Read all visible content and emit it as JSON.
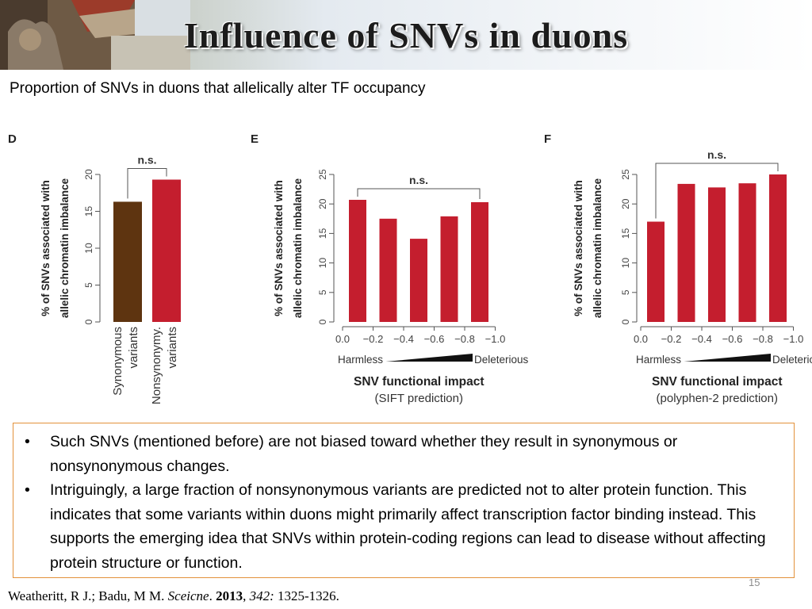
{
  "slide": {
    "title": "Influence of SNVs in duons",
    "subtitle": "Proportion of SNVs in duons that allelically alter TF occupancy",
    "page_number": "15"
  },
  "colors": {
    "synonymous_bar": "#5e3410",
    "bar_red": "#c41e2e",
    "box_border": "#e2913b"
  },
  "chart_data": [
    {
      "type": "bar",
      "panel_label": "D",
      "ylabel_lines": [
        "% of SNVs associated with",
        "allelic chromatin imbalance"
      ],
      "ylim": [
        0,
        20
      ],
      "yticks": [
        "0",
        "5",
        "10",
        "15",
        "20"
      ],
      "categories": [
        "Synonymous variants",
        "Nonsynonymy. variants"
      ],
      "category_lines": [
        [
          "Synonymous",
          "variants"
        ],
        [
          "Nonsynonymy.",
          "variants"
        ]
      ],
      "values": [
        16.3,
        19.3
      ],
      "bar_colors": [
        "#5e3410",
        "#c41e2e"
      ],
      "significance": "n.s."
    },
    {
      "type": "bar",
      "panel_label": "E",
      "ylabel_lines": [
        "% of SNVs associated with",
        "allelic chromatin imbalance"
      ],
      "ylim": [
        0,
        25
      ],
      "yticks": [
        "0",
        "5",
        "10",
        "15",
        "20",
        "25"
      ],
      "categories": [
        "0.0 − 0.2",
        "− 0.4",
        "− 0.6",
        "− 0.8",
        "− 1.0"
      ],
      "xtick_labels": [
        "0.0",
        "−0.2",
        "−0.4",
        "−0.6",
        "−0.8",
        "−1.0"
      ],
      "values": [
        20.7,
        17.5,
        14.1,
        17.9,
        20.3
      ],
      "bar_colors": [
        "#c41e2e",
        "#c41e2e",
        "#c41e2e",
        "#c41e2e",
        "#c41e2e"
      ],
      "significance": "n.s.",
      "scale_left": "Harmless",
      "scale_right": "Deleterious",
      "xlabel": "SNV functional impact",
      "xlabel_sub": "(SIFT prediction)"
    },
    {
      "type": "bar",
      "panel_label": "F",
      "ylabel_lines": [
        "% of SNVs associated with",
        "allelic chromatin imbalance"
      ],
      "ylim": [
        0,
        25
      ],
      "yticks": [
        "0",
        "5",
        "10",
        "15",
        "20",
        "25"
      ],
      "categories": [
        "0.0 − 0.2",
        "− 0.4",
        "− 0.6",
        "− 0.8",
        "− 1.0"
      ],
      "xtick_labels": [
        "0.0",
        "−0.2",
        "−0.4",
        "−0.6",
        "−0.8",
        "−1.0"
      ],
      "values": [
        17.0,
        23.4,
        22.8,
        23.5,
        25.0
      ],
      "bar_colors": [
        "#c41e2e",
        "#c41e2e",
        "#c41e2e",
        "#c41e2e",
        "#c41e2e"
      ],
      "significance": "n.s.",
      "scale_left": "Harmless",
      "scale_right": "Deleterious",
      "xlabel": "SNV functional impact",
      "xlabel_sub": "(polyphen-2 prediction)"
    }
  ],
  "bullets": [
    "Such SNVs (mentioned before) are not biased toward whether they result in synonymous or nonsynonymous changes.",
    "Intriguingly, a large fraction of nonsynonymous variants are predicted not to alter protein function. This indicates that some variants within duons might primarily affect transcription factor binding instead. This supports the emerging idea that SNVs within protein-coding regions can lead to disease without affecting protein structure or function."
  ],
  "bullet_glyph": "•",
  "citation": {
    "authors": "Weatheritt, R J.; Badu, M M. ",
    "journal": "Sceicne",
    "sep1": ". ",
    "year": "2013",
    "sep2": ", ",
    "volume": "342:",
    "pages": " 1325-1326."
  }
}
